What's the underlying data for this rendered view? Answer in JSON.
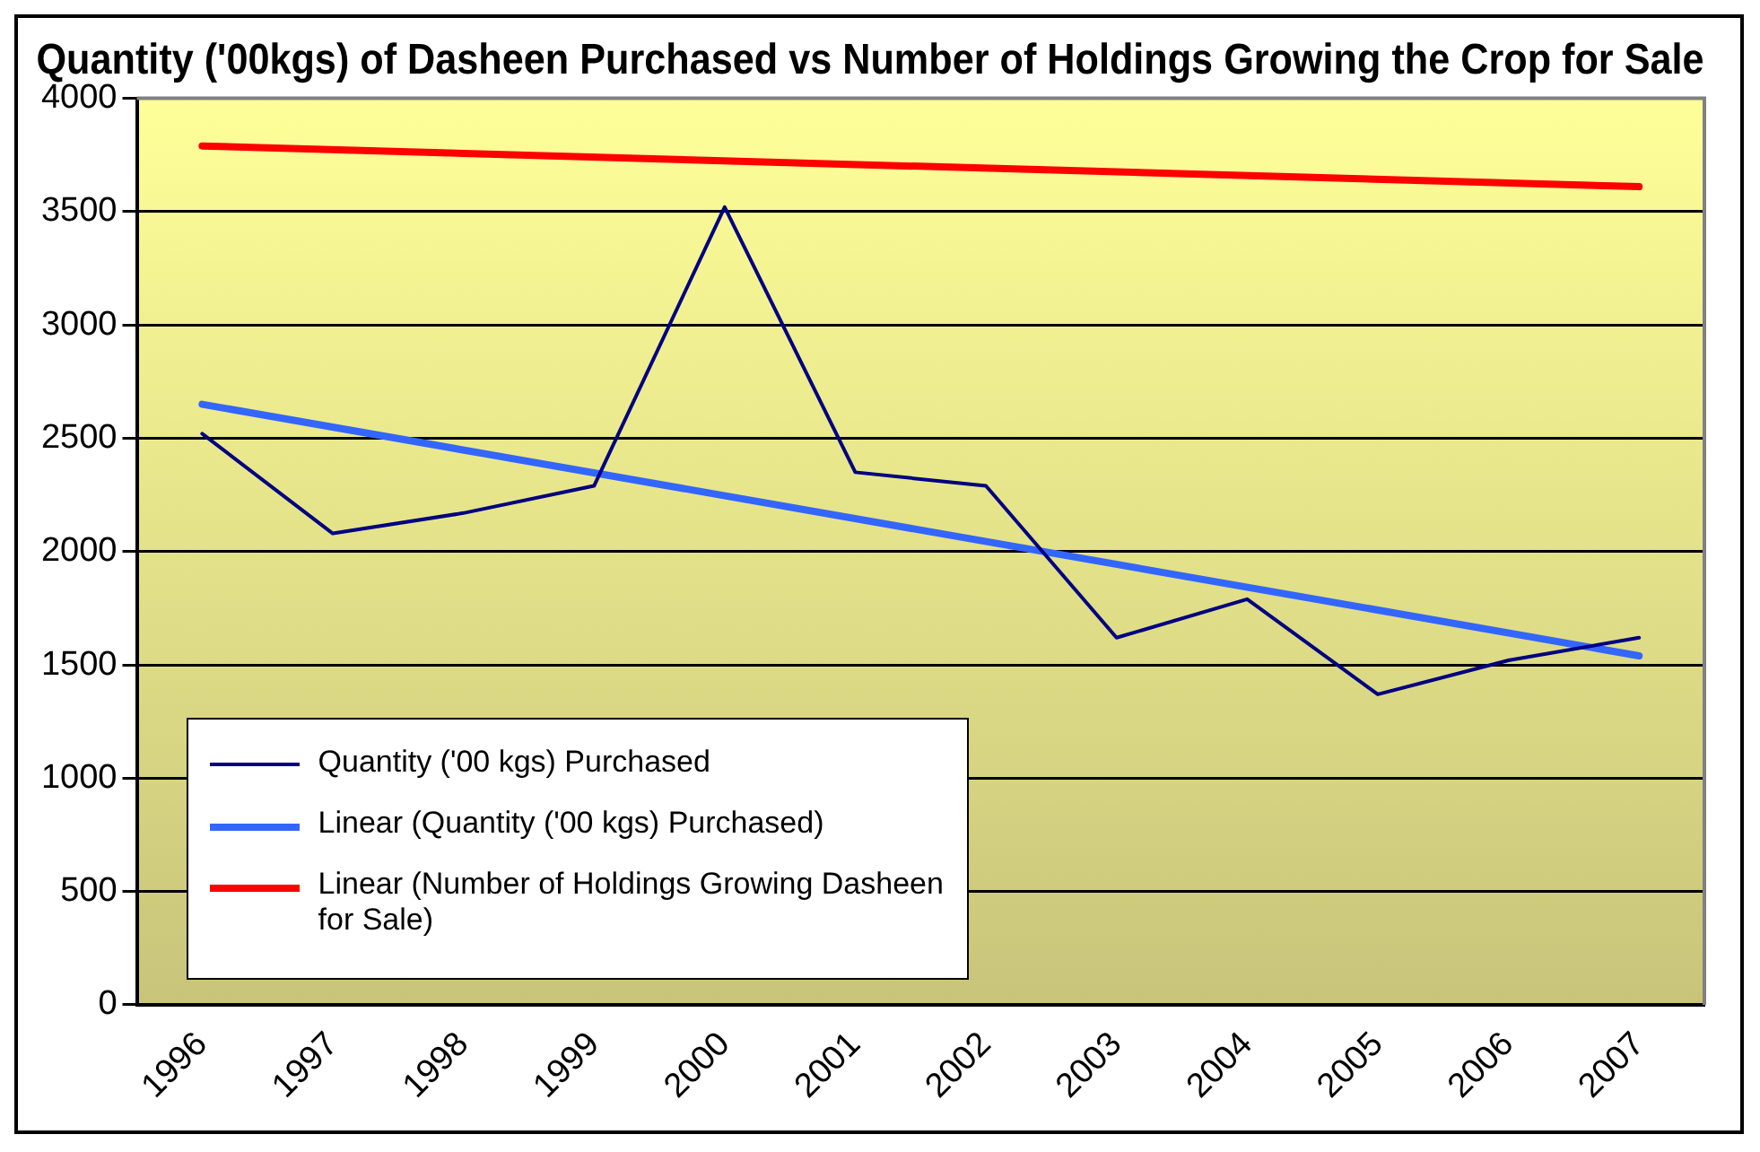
{
  "chart_data": {
    "type": "line",
    "title": "Quantity ('00kgs) of Dasheen Purchased vs Number of Holdings Growing the Crop for Sale",
    "categories": [
      "1996",
      "1997",
      "1998",
      "1999",
      "2000",
      "2001",
      "2002",
      "2003",
      "2004",
      "2005",
      "2006",
      "2007"
    ],
    "series": [
      {
        "name": "Quantity ('00 kgs) Purchased",
        "color": "#000080",
        "values": [
          2520,
          2080,
          2170,
          2290,
          3520,
          2350,
          2290,
          1620,
          1790,
          1370,
          1520,
          1620
        ]
      },
      {
        "name": "Linear (Quantity ('00 kgs) Purchased)",
        "color": "#3366ff",
        "values": [
          2650,
          null,
          null,
          null,
          null,
          null,
          null,
          null,
          null,
          null,
          null,
          1540
        ]
      },
      {
        "name": "Linear (Number of Holdings Growing Dasheen for Sale)",
        "color": "#ff0000",
        "values": [
          3790,
          null,
          null,
          null,
          null,
          null,
          null,
          null,
          null,
          null,
          null,
          3610
        ]
      }
    ],
    "ylim": [
      0,
      4000
    ],
    "yticks": [
      0,
      500,
      1000,
      1500,
      2000,
      2500,
      3000,
      3500,
      4000
    ],
    "grid": "y",
    "legend": "bottom left",
    "marker": "none",
    "line_style": "solid"
  }
}
